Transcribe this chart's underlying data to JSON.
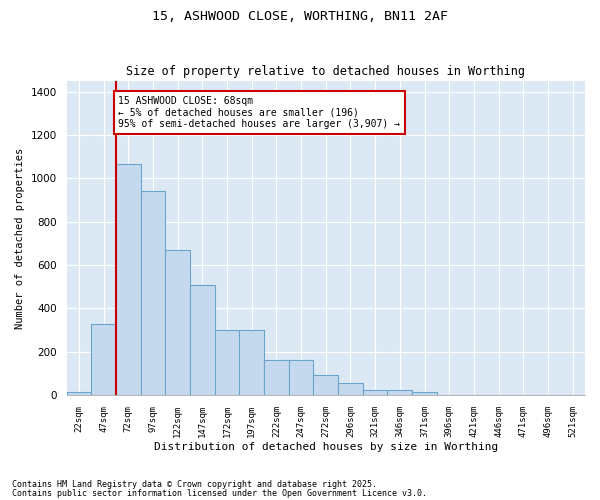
{
  "title1": "15, ASHWOOD CLOSE, WORTHING, BN11 2AF",
  "title2": "Size of property relative to detached houses in Worthing",
  "xlabel": "Distribution of detached houses by size in Worthing",
  "ylabel": "Number of detached properties",
  "categories": [
    "22sqm",
    "47sqm",
    "72sqm",
    "97sqm",
    "122sqm",
    "147sqm",
    "172sqm",
    "197sqm",
    "222sqm",
    "247sqm",
    "272sqm",
    "296sqm",
    "321sqm",
    "346sqm",
    "371sqm",
    "396sqm",
    "421sqm",
    "446sqm",
    "471sqm",
    "496sqm",
    "521sqm"
  ],
  "values": [
    15,
    330,
    1065,
    940,
    670,
    510,
    300,
    300,
    160,
    160,
    90,
    55,
    25,
    25,
    15,
    0,
    0,
    0,
    0,
    0,
    0
  ],
  "bar_color": "#c5d9ee",
  "bar_edge_color": "#6aa3cc",
  "vline_color": "#cc0000",
  "annotation_text": "15 ASHWOOD CLOSE: 68sqm\n← 5% of detached houses are smaller (196)\n95% of semi-detached houses are larger (3,907) →",
  "annotation_box_color": "#ffffff",
  "annotation_box_edge": "#cc0000",
  "ylim": [
    0,
    1450
  ],
  "yticks": [
    0,
    200,
    400,
    600,
    800,
    1000,
    1200,
    1400
  ],
  "background_color": "#dce9f5",
  "grid_color": "#ffffff",
  "footer1": "Contains HM Land Registry data © Crown copyright and database right 2025.",
  "footer2": "Contains public sector information licensed under the Open Government Licence v3.0."
}
